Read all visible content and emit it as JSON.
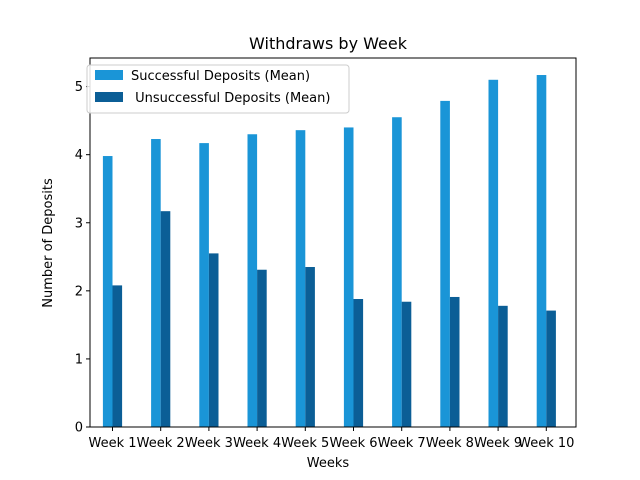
{
  "chart_data": {
    "type": "bar",
    "title": "Withdraws by Week",
    "xlabel": "Weeks",
    "ylabel": "Number of Deposits",
    "ylim": [
      0,
      5.42
    ],
    "yticks": [
      0,
      1,
      2,
      3,
      4,
      5
    ],
    "ytick_labels": [
      "0",
      "1",
      "2",
      "3",
      "4",
      "5"
    ],
    "categories": [
      "Week 1",
      "Week 2",
      "Week 3",
      "Week 4",
      "Week 5",
      "Week 6",
      "Week 7",
      "Week 8",
      "Week 9",
      "Week 10"
    ],
    "series": [
      {
        "name": "Successful Deposits (Mean)",
        "color": "#1a95d7",
        "values": [
          3.98,
          4.23,
          4.17,
          4.3,
          4.36,
          4.4,
          4.55,
          4.79,
          5.1,
          5.17
        ]
      },
      {
        "name": " Unsuccessful Deposits (Mean)",
        "color": "#0b5e96",
        "values": [
          2.08,
          3.17,
          2.55,
          2.31,
          2.35,
          1.88,
          1.84,
          1.91,
          1.78,
          1.71
        ]
      }
    ],
    "legend_position": "upper-left",
    "grid": false
  }
}
